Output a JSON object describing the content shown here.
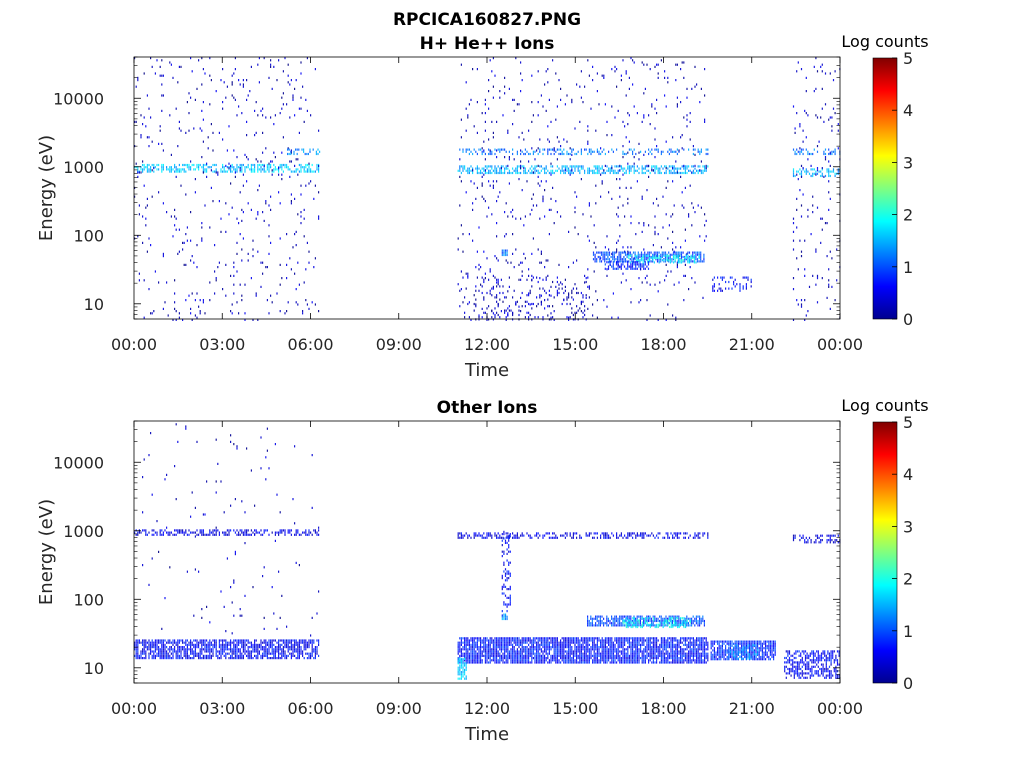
{
  "figure": {
    "title": "RPCICA160827.PNG"
  },
  "colorbar": {
    "label": "Log counts",
    "ticks": [
      "0",
      "1",
      "2",
      "3",
      "4",
      "5"
    ]
  },
  "chart_data": [
    {
      "type": "heatmap",
      "title": "H+ He++ Ions",
      "xlabel": "Time",
      "ylabel": "Energy (eV)",
      "x_tick_labels": [
        "00:00",
        "03:00",
        "06:00",
        "09:00",
        "12:00",
        "15:00",
        "18:00",
        "21:00",
        "00:00"
      ],
      "y_tick_labels": [
        "10",
        "100",
        "1000",
        "10000"
      ],
      "y_scale": "log",
      "xlim_hours": [
        0,
        24
      ],
      "ylim": [
        6,
        40000
      ],
      "colorbar_range": [
        0,
        5
      ],
      "regions": [
        {
          "t0": 0.0,
          "t1": 6.3,
          "e0": 820,
          "e1": 1100,
          "level": 1.6,
          "density": 0.55
        },
        {
          "t0": 0.0,
          "t1": 6.3,
          "e0": 6,
          "e1": 40000,
          "level": 0.3,
          "density": 0.03
        },
        {
          "t0": 5.2,
          "t1": 6.3,
          "e0": 1550,
          "e1": 1850,
          "level": 1.3,
          "density": 0.4
        },
        {
          "t0": 11.0,
          "t1": 19.5,
          "e0": 800,
          "e1": 1050,
          "level": 1.5,
          "density": 0.55
        },
        {
          "t0": 11.0,
          "t1": 19.5,
          "e0": 1550,
          "e1": 1850,
          "level": 1.2,
          "density": 0.3
        },
        {
          "t0": 11.0,
          "t1": 19.5,
          "e0": 6,
          "e1": 40000,
          "level": 0.3,
          "density": 0.03
        },
        {
          "t0": 11.0,
          "t1": 15.5,
          "e0": 6,
          "e1": 25,
          "level": 0.3,
          "density": 0.12
        },
        {
          "t0": 12.5,
          "t1": 12.7,
          "e0": 50,
          "e1": 62,
          "level": 1.2,
          "density": 0.9
        },
        {
          "t0": 15.6,
          "t1": 19.4,
          "e0": 42,
          "e1": 58,
          "level": 1.0,
          "density": 0.7
        },
        {
          "t0": 16.8,
          "t1": 19.2,
          "e0": 40,
          "e1": 52,
          "level": 1.8,
          "density": 0.5
        },
        {
          "t0": 16.0,
          "t1": 17.5,
          "e0": 33,
          "e1": 42,
          "level": 0.8,
          "density": 0.6
        },
        {
          "t0": 19.6,
          "t1": 21.0,
          "e0": 16,
          "e1": 25,
          "level": 0.6,
          "density": 0.3
        },
        {
          "t0": 22.4,
          "t1": 24.0,
          "e0": 750,
          "e1": 950,
          "level": 1.5,
          "density": 0.5
        },
        {
          "t0": 22.4,
          "t1": 24.0,
          "e0": 1550,
          "e1": 1850,
          "level": 1.2,
          "density": 0.35
        },
        {
          "t0": 22.4,
          "t1": 24.0,
          "e0": 6,
          "e1": 40000,
          "level": 0.3,
          "density": 0.03
        }
      ]
    },
    {
      "type": "heatmap",
      "title": "Other Ions",
      "xlabel": "Time",
      "ylabel": "Energy (eV)",
      "x_tick_labels": [
        "00:00",
        "03:00",
        "06:00",
        "09:00",
        "12:00",
        "15:00",
        "18:00",
        "21:00",
        "00:00"
      ],
      "y_tick_labels": [
        "10",
        "100",
        "1000",
        "10000"
      ],
      "y_scale": "log",
      "xlim_hours": [
        0,
        24
      ],
      "ylim": [
        6,
        40000
      ],
      "colorbar_range": [
        0,
        5
      ],
      "regions": [
        {
          "t0": 0.0,
          "t1": 6.3,
          "e0": 14,
          "e1": 26,
          "level": 0.6,
          "density": 0.75
        },
        {
          "t0": 0.0,
          "t1": 6.3,
          "e0": 900,
          "e1": 1050,
          "level": 0.5,
          "density": 0.5
        },
        {
          "t0": 0.0,
          "t1": 6.3,
          "e0": 30,
          "e1": 40000,
          "level": 0.3,
          "density": 0.01
        },
        {
          "t0": 11.0,
          "t1": 19.5,
          "e0": 12,
          "e1": 28,
          "level": 0.7,
          "density": 0.85
        },
        {
          "t0": 11.0,
          "t1": 11.3,
          "e0": 7,
          "e1": 14,
          "level": 1.6,
          "density": 0.8
        },
        {
          "t0": 11.0,
          "t1": 19.5,
          "e0": 800,
          "e1": 950,
          "level": 0.5,
          "density": 0.5
        },
        {
          "t0": 12.5,
          "t1": 12.8,
          "e0": 60,
          "e1": 1000,
          "level": 0.6,
          "density": 0.3
        },
        {
          "t0": 12.5,
          "t1": 12.7,
          "e0": 50,
          "e1": 62,
          "level": 1.4,
          "density": 0.9
        },
        {
          "t0": 15.4,
          "t1": 19.4,
          "e0": 42,
          "e1": 58,
          "level": 1.0,
          "density": 0.75
        },
        {
          "t0": 16.5,
          "t1": 19.0,
          "e0": 40,
          "e1": 55,
          "level": 1.9,
          "density": 0.45
        },
        {
          "t0": 19.6,
          "t1": 21.8,
          "e0": 13,
          "e1": 25,
          "level": 0.8,
          "density": 0.85
        },
        {
          "t0": 20.2,
          "t1": 21.2,
          "e0": 14,
          "e1": 22,
          "level": 1.3,
          "density": 0.5
        },
        {
          "t0": 22.1,
          "t1": 24.0,
          "e0": 7,
          "e1": 18,
          "level": 0.6,
          "density": 0.55
        },
        {
          "t0": 22.4,
          "t1": 24.0,
          "e0": 700,
          "e1": 880,
          "level": 0.5,
          "density": 0.45
        }
      ]
    }
  ]
}
